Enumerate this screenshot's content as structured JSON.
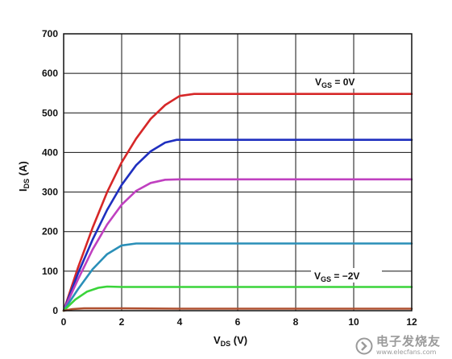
{
  "chart_data": {
    "type": "line",
    "xlabel": "V",
    "xlabel_sub": "DS",
    "xlabel_unit": " (V)",
    "ylabel": "I",
    "ylabel_sub": "DS",
    "ylabel_unit": " (A)",
    "xlim": [
      0,
      12
    ],
    "ylim": [
      0,
      700
    ],
    "xticks": [
      0,
      2,
      4,
      6,
      8,
      10,
      12
    ],
    "yticks": [
      0,
      100,
      200,
      300,
      400,
      500,
      600,
      700
    ],
    "grid": true,
    "series": [
      {
        "color": "#d62728",
        "values": [
          [
            0,
            0
          ],
          [
            0.5,
            110
          ],
          [
            1,
            210
          ],
          [
            1.5,
            300
          ],
          [
            2,
            375
          ],
          [
            2.5,
            435
          ],
          [
            3,
            485
          ],
          [
            3.5,
            520
          ],
          [
            4,
            543
          ],
          [
            4.5,
            548
          ],
          [
            6,
            548
          ],
          [
            8,
            548
          ],
          [
            10,
            548
          ],
          [
            12,
            548
          ]
        ]
      },
      {
        "color": "#1f2fbf",
        "values": [
          [
            0,
            0
          ],
          [
            0.5,
            95
          ],
          [
            1,
            180
          ],
          [
            1.5,
            255
          ],
          [
            2,
            318
          ],
          [
            2.5,
            368
          ],
          [
            3,
            403
          ],
          [
            3.5,
            425
          ],
          [
            3.9,
            432
          ],
          [
            6,
            432
          ],
          [
            8,
            432
          ],
          [
            10,
            432
          ],
          [
            12,
            432
          ]
        ]
      },
      {
        "color": "#c040c0",
        "values": [
          [
            0,
            0
          ],
          [
            0.5,
            80
          ],
          [
            1,
            155
          ],
          [
            1.5,
            218
          ],
          [
            2,
            268
          ],
          [
            2.5,
            303
          ],
          [
            3,
            323
          ],
          [
            3.5,
            331
          ],
          [
            4,
            332
          ],
          [
            6,
            332
          ],
          [
            8,
            332
          ],
          [
            10,
            332
          ],
          [
            12,
            332
          ]
        ]
      },
      {
        "color": "#2a8fb8",
        "values": [
          [
            0,
            0
          ],
          [
            0.5,
            55
          ],
          [
            1,
            105
          ],
          [
            1.5,
            143
          ],
          [
            2,
            165
          ],
          [
            2.5,
            170
          ],
          [
            4,
            170
          ],
          [
            6,
            170
          ],
          [
            8,
            170
          ],
          [
            10,
            170
          ],
          [
            12,
            170
          ]
        ]
      },
      {
        "color": "#3ad43a",
        "values": [
          [
            0,
            0
          ],
          [
            0.4,
            28
          ],
          [
            0.8,
            48
          ],
          [
            1.2,
            58
          ],
          [
            1.5,
            61
          ],
          [
            2,
            60
          ],
          [
            4,
            60
          ],
          [
            6,
            60
          ],
          [
            8,
            60
          ],
          [
            10,
            60
          ],
          [
            12,
            60
          ]
        ]
      },
      {
        "color": "#b05030",
        "values": [
          [
            0,
            0
          ],
          [
            0.3,
            4
          ],
          [
            0.7,
            6
          ],
          [
            1.2,
            6
          ],
          [
            2,
            6
          ],
          [
            4,
            5
          ],
          [
            6,
            5
          ],
          [
            8,
            5
          ],
          [
            10,
            5
          ],
          [
            12,
            5
          ]
        ]
      }
    ],
    "annotations": [
      {
        "label": "V",
        "sub": "GS",
        "text": " = 0V"
      },
      {
        "label": "V",
        "sub": "GS",
        "text": " = −2V"
      }
    ]
  },
  "watermark": {
    "title": "电子发烧友",
    "url": "www.elecfans.com",
    "icon": "elecfans-logo-icon"
  }
}
